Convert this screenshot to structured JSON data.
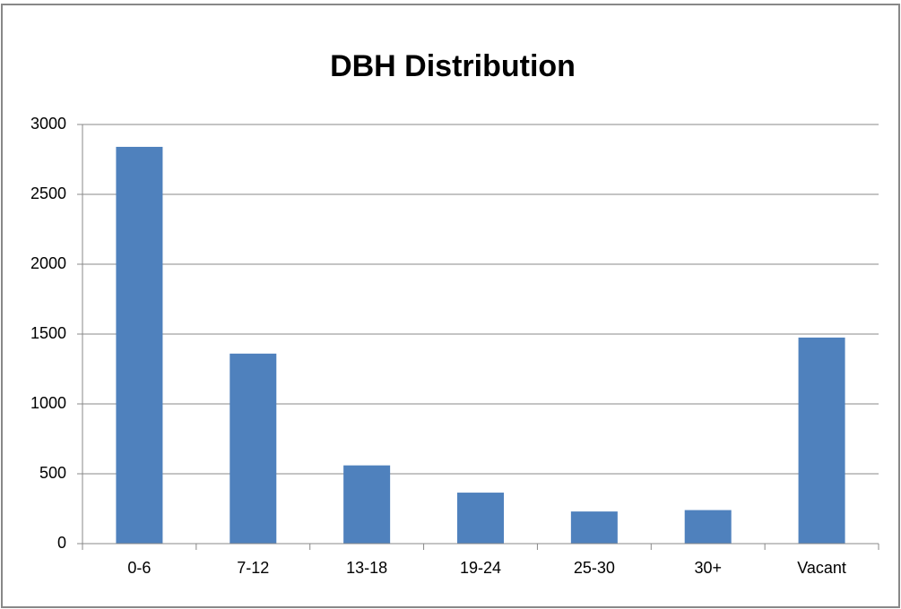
{
  "chart_data": {
    "type": "bar",
    "title": "DBH Distribution",
    "categories": [
      "0-6",
      "7-12",
      "13-18",
      "19-24",
      "25-30",
      "30+",
      "Vacant"
    ],
    "values": [
      2840,
      1360,
      560,
      365,
      230,
      240,
      1475
    ],
    "color": "#4f81bd",
    "ylim": [
      0,
      3000
    ],
    "yticks": [
      0,
      500,
      1000,
      1500,
      2000,
      2500,
      3000
    ],
    "grid": true
  }
}
